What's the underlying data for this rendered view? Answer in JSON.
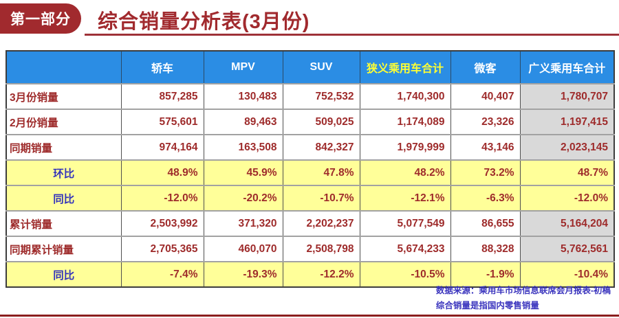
{
  "header": {
    "badge": "第一部分",
    "title": "综合销量分析表(3月份)"
  },
  "table": {
    "columns": [
      "",
      "轿车",
      "MPV",
      "SUV",
      "狭义乘用车合计",
      "微客",
      "广义乘用车合计"
    ],
    "highlight_column": "狭义乘用车合计",
    "rows": [
      {
        "label": "3月份销量",
        "type": "count",
        "values": [
          "857,285",
          "130,483",
          "752,532",
          "1,740,300",
          "40,407",
          "1,780,707"
        ]
      },
      {
        "label": "2月份销量",
        "type": "count",
        "values": [
          "575,601",
          "89,463",
          "509,025",
          "1,174,089",
          "23,326",
          "1,197,415"
        ]
      },
      {
        "label": "同期销量",
        "type": "count",
        "values": [
          "974,164",
          "163,508",
          "842,327",
          "1,979,999",
          "43,146",
          "2,023,145"
        ]
      },
      {
        "label": "环比",
        "type": "percent",
        "values": [
          "48.9%",
          "45.9%",
          "47.8%",
          "48.2%",
          "73.2%",
          "48.7%"
        ]
      },
      {
        "label": "同比",
        "type": "percent",
        "values": [
          "-12.0%",
          "-20.2%",
          "-10.7%",
          "-12.1%",
          "-6.3%",
          "-12.0%"
        ]
      },
      {
        "label": "累计销量",
        "type": "count",
        "values": [
          "2,503,992",
          "371,320",
          "2,202,237",
          "5,077,549",
          "86,655",
          "5,164,204"
        ]
      },
      {
        "label": "同期累计销量",
        "type": "count",
        "values": [
          "2,705,365",
          "460,070",
          "2,508,798",
          "5,674,233",
          "88,328",
          "5,762,561"
        ]
      },
      {
        "label": "同比",
        "type": "percent",
        "values": [
          "-7.4%",
          "-19.3%",
          "-12.2%",
          "-10.5%",
          "-1.9%",
          "-10.4%"
        ]
      }
    ]
  },
  "footer": {
    "line1": "数据来源：乘用车市场信息联席会月报表-初稿",
    "line2": "综合销量是指国内零售销量"
  },
  "colors": {
    "dark_red": "#a12a2e",
    "rule_red": "#9e3138",
    "rule_red2": "#8b1e1e",
    "header_blue": "#2b8de4",
    "header_highlight": "#ffff33",
    "num_red": "#9e2b2b",
    "label_blue": "#3434bb",
    "row_yellow": "#ffff99",
    "grand_gray": "#d9d9d9",
    "note_blue": "#3b35be"
  }
}
